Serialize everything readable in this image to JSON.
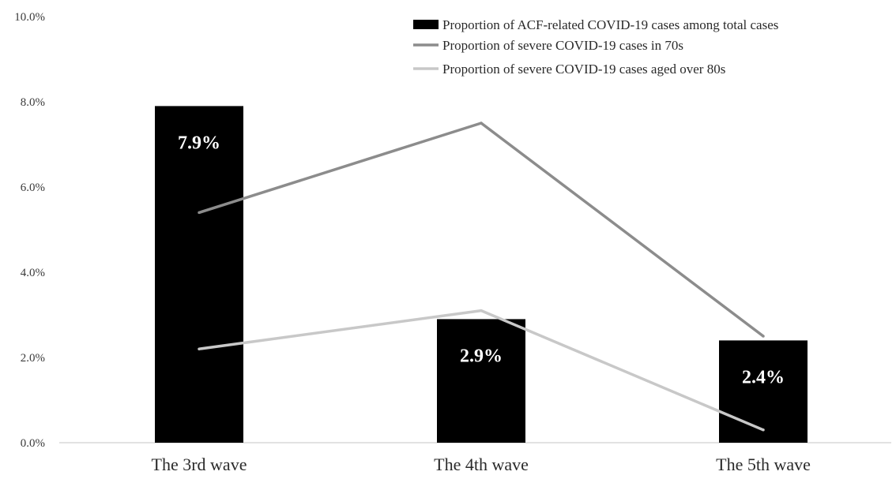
{
  "chart_data": {
    "type": "bar",
    "categories": [
      "The 3rd wave",
      "The 4th wave",
      "The 5th wave"
    ],
    "y_ticks": [
      "0.0%",
      "2.0%",
      "4.0%",
      "6.0%",
      "8.0%",
      "10.0%"
    ],
    "ylim": [
      0,
      10
    ],
    "series": [
      {
        "name": "Proportion of ACF-related COVID-19 cases among total cases",
        "kind": "bar",
        "values": [
          7.9,
          2.9,
          2.4
        ],
        "data_labels": [
          "7.9%",
          "2.9%",
          "2.4%"
        ],
        "color": "#000000"
      },
      {
        "name": "Proportion of severe COVID-19 cases in 70s",
        "kind": "line",
        "values": [
          5.4,
          7.5,
          2.5
        ],
        "color": "#8c8c8c"
      },
      {
        "name": "Proportion of severe COVID-19 cases aged over 80s",
        "kind": "line",
        "values": [
          2.2,
          3.1,
          0.3
        ],
        "color": "#c8c8c8"
      }
    ],
    "legend_position": "top-right",
    "grid": false
  }
}
